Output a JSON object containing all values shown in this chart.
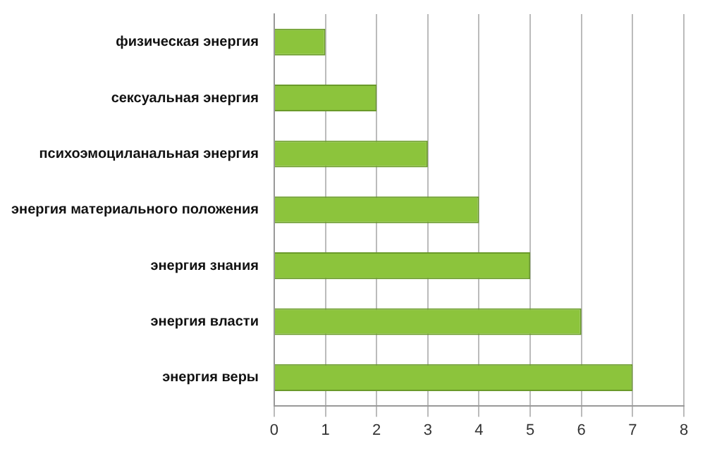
{
  "chart_data": {
    "type": "bar",
    "orientation": "horizontal",
    "categories": [
      "физическая энергия",
      "сексуальная энергия",
      "психоэмоциланальная энергия",
      "энергия материального положения",
      "энергия знания",
      "энергия власти",
      "энергия веры"
    ],
    "values": [
      1,
      2,
      3,
      4,
      5,
      6,
      7
    ],
    "color": "#8cc43c",
    "xlim": [
      0,
      8
    ],
    "xticks": [
      0,
      1,
      2,
      3,
      4,
      5,
      6,
      7,
      8
    ],
    "grid": "x",
    "legend": false
  }
}
